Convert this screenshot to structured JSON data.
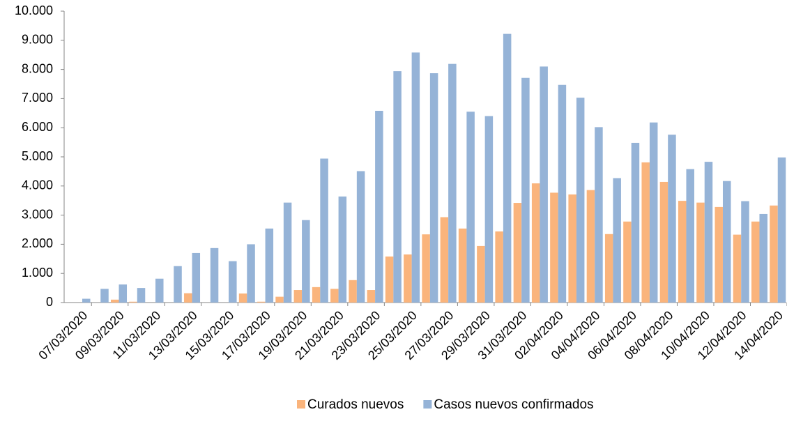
{
  "chart_data": {
    "type": "bar",
    "categories": [
      "07/03/2020",
      null,
      "09/03/2020",
      null,
      "11/03/2020",
      null,
      "13/03/2020",
      null,
      "15/03/2020",
      null,
      "17/03/2020",
      null,
      "19/03/2020",
      null,
      "21/03/2020",
      null,
      "23/03/2020",
      null,
      "25/03/2020",
      null,
      "27/03/2020",
      null,
      "29/03/2020",
      null,
      "31/03/2020",
      null,
      "02/04/2020",
      null,
      "04/04/2020",
      null,
      "06/04/2020",
      null,
      "08/04/2020",
      null,
      "10/04/2020",
      null,
      "12/04/2020",
      null,
      "14/04/2020"
    ],
    "series": [
      {
        "name": "Curados nuevos",
        "color": "#fab47c",
        "values": [
          0,
          0,
          100,
          30,
          0,
          0,
          320,
          0,
          0,
          310,
          30,
          200,
          430,
          530,
          470,
          770,
          430,
          1580,
          1650,
          2340,
          2930,
          2540,
          1940,
          2440,
          3420,
          4090,
          3770,
          3710,
          3860,
          2350,
          2780,
          4810,
          4140,
          3490,
          3430,
          3280,
          2330,
          2780,
          3330
        ]
      },
      {
        "name": "Casos nuevos confirmados",
        "color": "#95b3d7",
        "values": [
          130,
          470,
          620,
          500,
          820,
          1250,
          1700,
          1870,
          1420,
          2000,
          2540,
          3430,
          2830,
          4940,
          3640,
          4510,
          6580,
          7940,
          8580,
          7870,
          8190,
          6550,
          6400,
          9220,
          7710,
          8100,
          7470,
          7030,
          6020,
          4270,
          5480,
          6180,
          5760,
          4580,
          4830,
          4170,
          3480,
          3040,
          4980
        ]
      }
    ],
    "ylim": [
      0,
      10000
    ],
    "yticks": [
      0,
      {
        "value": 1000,
        "label": "1.000"
      },
      {
        "value": 2000,
        "label": "2.000"
      },
      {
        "value": 3000,
        "label": "3.000"
      },
      {
        "value": 4000,
        "label": "4.000"
      },
      {
        "value": 5000,
        "label": "5.000"
      },
      {
        "value": 6000,
        "label": "6.000"
      },
      {
        "value": 7000,
        "label": "7.000"
      },
      {
        "value": 8000,
        "label": "8.000"
      },
      {
        "value": 9000,
        "label": "9.000"
      },
      {
        "value": 10000,
        "label": "10.000"
      }
    ],
    "grid": false,
    "legend": "bottom"
  }
}
